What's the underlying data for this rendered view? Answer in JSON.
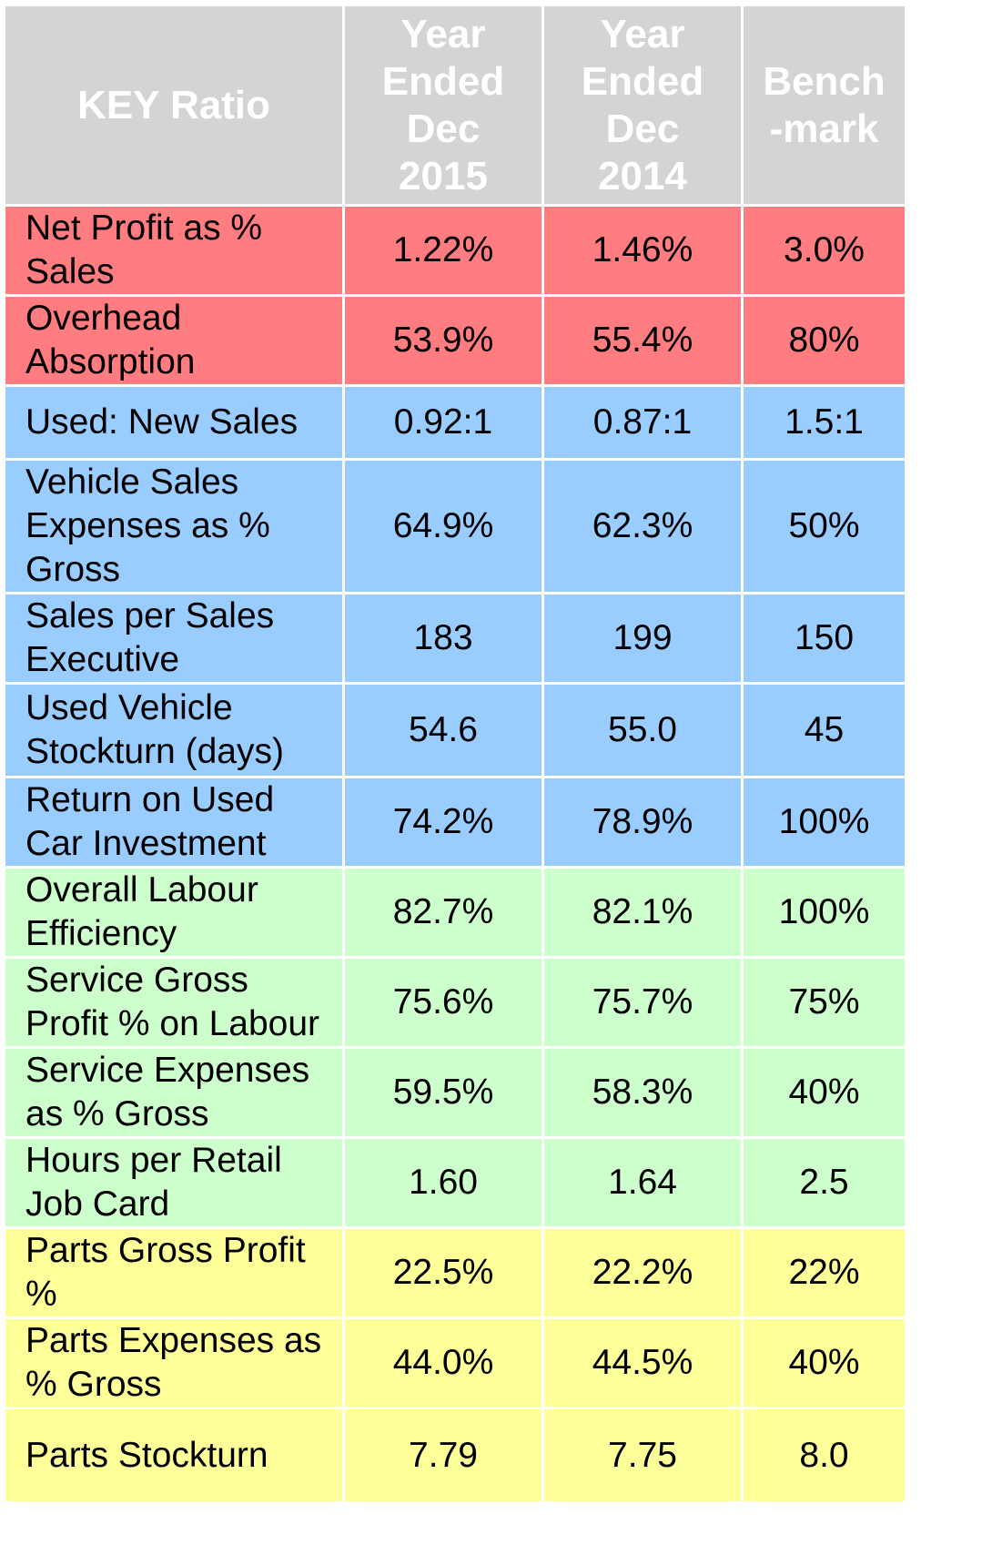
{
  "header": {
    "key_ratio": "KEY Ratio",
    "year_2015_line1": "Year",
    "year_2015_line2": "Ended",
    "year_2015_line3": "Dec",
    "year_2015_line4": "2015",
    "year_2014_line1": "Year",
    "year_2014_line2": "Ended",
    "year_2014_line3": "Dec",
    "year_2014_line4": "2014",
    "benchmark_line1": "Bench",
    "benchmark_line2": "-mark"
  },
  "colors": {
    "header": "#d4d4d4",
    "red": "#ff7c80",
    "blue": "#99ccff",
    "green": "#ccffcc",
    "yellow": "#ffff99"
  },
  "rows": [
    {
      "label_line1": "Net Profit as %",
      "label_line2": "Sales",
      "y2015": "1.22%",
      "y2014": "1.46%",
      "benchmark": "3.0%",
      "group": "red"
    },
    {
      "label_line1": "Overhead",
      "label_line2": "Absorption",
      "y2015": "53.9%",
      "y2014": "55.4%",
      "benchmark": "80%",
      "group": "red"
    },
    {
      "label_line1": "Used: New Sales",
      "y2015": "0.92:1",
      "y2014": "0.87:1",
      "benchmark": "1.5:1",
      "group": "blue"
    },
    {
      "label_line1": "Vehicle Sales",
      "label_line2": "Expenses as %",
      "label_line3": "Gross",
      "y2015": "64.9%",
      "y2014": "62.3%",
      "benchmark": "50%",
      "group": "blue"
    },
    {
      "label_line1": "Sales per Sales",
      "label_line2": "Executive",
      "y2015": "183",
      "y2014": "199",
      "benchmark": "150",
      "group": "blue"
    },
    {
      "label_line1": "Used Vehicle",
      "label_line2": "Stockturn (days)",
      "y2015": "54.6",
      "y2014": "55.0",
      "benchmark": "45",
      "group": "blue"
    },
    {
      "label_line1": "Return on Used",
      "label_line2": "Car Investment",
      "y2015": "74.2%",
      "y2014": "78.9%",
      "benchmark": "100%",
      "group": "blue"
    },
    {
      "label_line1": "Overall Labour",
      "label_line2": "Efficiency",
      "y2015": "82.7%",
      "y2014": "82.1%",
      "benchmark": "100%",
      "group": "green"
    },
    {
      "label_line1": "Service Gross",
      "label_line2": "Profit % on Labour",
      "y2015": "75.6%",
      "y2014": "75.7%",
      "benchmark": "75%",
      "group": "green"
    },
    {
      "label_line1": "Service Expenses",
      "label_line2": "as % Gross",
      "y2015": "59.5%",
      "y2014": "58.3%",
      "benchmark": "40%",
      "group": "green"
    },
    {
      "label_line1": "Hours per Retail",
      "label_line2": "Job Card",
      "y2015": "1.60",
      "y2014": "1.64",
      "benchmark": "2.5",
      "group": "green"
    },
    {
      "label_line1": "Parts Gross Profit",
      "label_line2": "%",
      "y2015": "22.5%",
      "y2014": "22.2%",
      "benchmark": "22%",
      "group": "yellow"
    },
    {
      "label_line1": "Parts Expenses as",
      "label_line2": "% Gross",
      "y2015": "44.0%",
      "y2014": "44.5%",
      "benchmark": "40%",
      "group": "yellow"
    },
    {
      "label_line1": "Parts Stockturn",
      "y2015": "7.79",
      "y2014": "7.75",
      "benchmark": "8.0",
      "group": "yellow"
    }
  ]
}
